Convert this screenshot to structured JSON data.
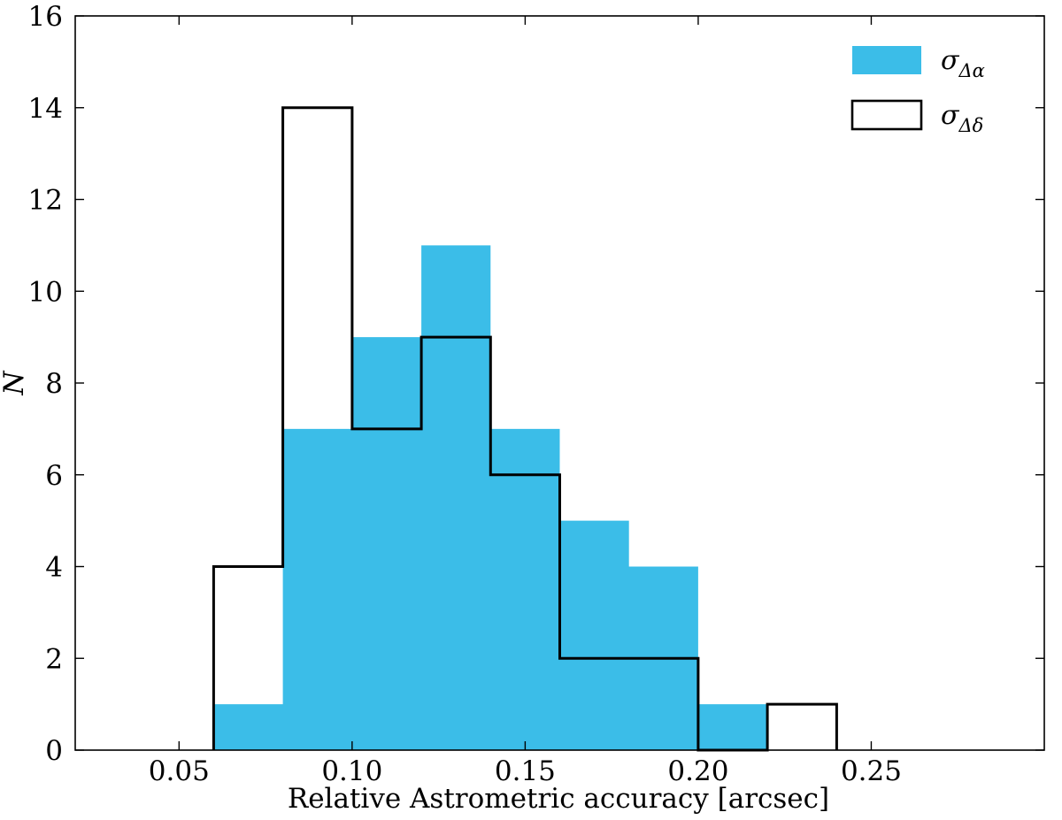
{
  "figure": {
    "background": "#ffffff",
    "frame_color": "#000000"
  },
  "chart_data": {
    "type": "histogram",
    "xlabel": "Relative Astrometric accuracy [arcsec]",
    "ylabel": "N",
    "xlim": [
      0.02,
      0.3
    ],
    "ylim": [
      0,
      16
    ],
    "grid": false,
    "legend_position": "upper right",
    "legend_frame": false,
    "x_tick_values": [
      0.05,
      0.1,
      0.15,
      0.2,
      0.25
    ],
    "x_tick_labels": [
      "0.05",
      "0.10",
      "0.15",
      "0.20",
      "0.25"
    ],
    "y_tick_values": [
      0,
      2,
      4,
      6,
      8,
      10,
      12,
      14,
      16
    ],
    "y_tick_labels": [
      "0",
      "2",
      "4",
      "6",
      "8",
      "10",
      "12",
      "14",
      "16"
    ],
    "bin_width": 0.02,
    "bin_edges": [
      0.06,
      0.08,
      0.1,
      0.12,
      0.14,
      0.16,
      0.18,
      0.2,
      0.22,
      0.24
    ],
    "series": [
      {
        "name": "sigma-delta-alpha",
        "legend_symbol": "σ",
        "legend_subscript": "Δα",
        "style": "filled",
        "color": "#3bbde8",
        "line_width": 0,
        "values": [
          1,
          7,
          9,
          11,
          7,
          5,
          4,
          1,
          0
        ]
      },
      {
        "name": "sigma-delta-delta",
        "legend_symbol": "σ",
        "legend_subscript": "Δδ",
        "style": "step",
        "color": "#000000",
        "line_width": 3,
        "values": [
          4,
          14,
          7,
          9,
          6,
          2,
          2,
          0,
          1
        ]
      }
    ]
  }
}
